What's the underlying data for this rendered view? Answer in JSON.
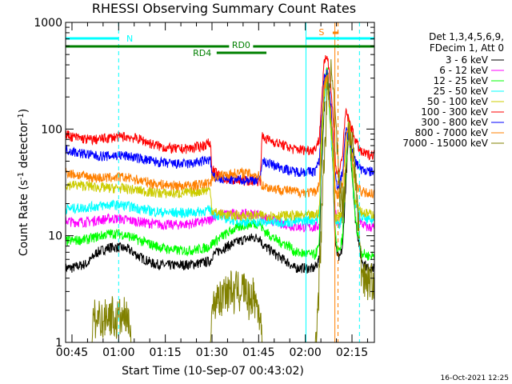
{
  "chart_data": {
    "type": "line",
    "title": "RHESSI Observing Summary Count Rates",
    "xlabel": "Start Time (10-Sep-07 00:43:02)",
    "ylabel_main": "Count Rate (s",
    "ylabel_sup1": "-1",
    "ylabel_mid": " detector",
    "ylabel_sup2": "-1",
    "ylabel_end": ")",
    "timestamp": "16-Oct-2021 12:25",
    "y_scale": "log",
    "ylim": [
      1,
      1000
    ],
    "xlim_minutes": [
      -2.05,
      97.2
    ],
    "x_ticks": [
      {
        "m": 0,
        "label": "00:45"
      },
      {
        "m": 15,
        "label": "01:00"
      },
      {
        "m": 30,
        "label": "01:15"
      },
      {
        "m": 45,
        "label": "01:30"
      },
      {
        "m": 60,
        "label": "01:45"
      },
      {
        "m": 75,
        "label": "02:00"
      },
      {
        "m": 90,
        "label": "02:15"
      }
    ],
    "y_ticks": [
      {
        "v": 1,
        "label": "1"
      },
      {
        "v": 10,
        "label": "10"
      },
      {
        "v": 100,
        "label": "100"
      },
      {
        "v": 1000,
        "label": "1000"
      }
    ],
    "legend_header": [
      "Det 1,3,4,5,6,9,",
      "FDecim 1, Att 0"
    ],
    "series": [
      {
        "name": "3 - 6 keV",
        "color": "#000000",
        "x": [
          -2,
          0,
          5,
          8,
          12,
          15,
          18,
          22,
          26,
          30,
          34,
          38,
          42,
          44.5,
          45,
          48,
          52,
          55,
          58,
          60.5,
          61,
          62,
          64,
          66,
          68,
          70,
          71,
          72,
          75,
          77,
          78,
          79.5,
          80,
          81,
          82,
          83,
          84,
          84.5,
          85,
          86,
          87,
          88,
          89,
          90,
          91,
          93,
          95
        ],
        "y": [
          5,
          5,
          5.5,
          7,
          7.8,
          7.8,
          7.5,
          6.3,
          5.5,
          5.3,
          5.3,
          5.4,
          5.6,
          5.8,
          6.5,
          7.5,
          8.5,
          9.2,
          9.6,
          9.6,
          8.5,
          7.9,
          7.3,
          6.5,
          6,
          5.5,
          5,
          5,
          5,
          4.9,
          5,
          6,
          30,
          150,
          330,
          130,
          35,
          10,
          7,
          6,
          8,
          30,
          100,
          40,
          15,
          6,
          5
        ]
      },
      {
        "name": "6 - 12 keV",
        "color": "#ff00ff",
        "x": [
          -2,
          0,
          5,
          8,
          12,
          15,
          18,
          22,
          26,
          30,
          34,
          38,
          42,
          44.5,
          45,
          48,
          52,
          55,
          58,
          60.5,
          61,
          62,
          64,
          66,
          68,
          70,
          71,
          72,
          75,
          77,
          78,
          79.5,
          80,
          81,
          82,
          83,
          84,
          84.5,
          85,
          86,
          87,
          88,
          89,
          90,
          91,
          93,
          95
        ],
        "y": [
          14,
          13.5,
          13.5,
          14,
          14.5,
          14.5,
          14,
          13.5,
          13,
          12.7,
          12.7,
          13,
          13.5,
          14,
          15,
          16,
          16,
          16,
          16,
          16,
          15,
          14.5,
          14,
          13.5,
          13,
          12.5,
          12.2,
          12.2,
          12,
          12,
          12,
          12.5,
          50,
          220,
          380,
          160,
          50,
          20,
          14,
          13,
          15,
          40,
          120,
          45,
          20,
          13,
          12
        ]
      },
      {
        "name": "12 - 25 keV",
        "color": "#00ff00",
        "x": [
          -2,
          0,
          5,
          8,
          12,
          15,
          18,
          22,
          26,
          30,
          34,
          38,
          42,
          44.5,
          45,
          48,
          52,
          55,
          58,
          60.5,
          61,
          62,
          64,
          66,
          68,
          70,
          71,
          72,
          75,
          77,
          78,
          79.5,
          80,
          81,
          82,
          83,
          84,
          84.5,
          85,
          86,
          87,
          88,
          89,
          90,
          91,
          93,
          95
        ],
        "y": [
          9,
          9,
          9.3,
          9.8,
          10.5,
          10.5,
          10,
          9,
          8.2,
          7.6,
          7.3,
          7.3,
          7.6,
          8,
          8.5,
          9.8,
          11.5,
          12.5,
          13,
          13,
          12,
          11,
          10,
          9,
          8.5,
          8,
          7.3,
          7,
          6.8,
          6.7,
          6.6,
          8,
          55,
          250,
          360,
          150,
          55,
          12,
          8,
          7,
          10,
          40,
          110,
          40,
          15,
          7,
          6.5
        ]
      },
      {
        "name": "25 - 50 keV",
        "color": "#00ffff",
        "x": [
          -2,
          0,
          5,
          8,
          12,
          15,
          18,
          22,
          26,
          30,
          34,
          38,
          42,
          44.5,
          45,
          48,
          52,
          55,
          58,
          60.5,
          61,
          62,
          64,
          66,
          68,
          70,
          71,
          72,
          75,
          77,
          78,
          79.5,
          80,
          81,
          82,
          83,
          84,
          84.5,
          85,
          86,
          87,
          88,
          89,
          90,
          91,
          93,
          95
        ],
        "y": [
          18,
          18,
          18.5,
          19,
          19.5,
          19.5,
          19,
          18,
          17,
          16.5,
          16.5,
          16.5,
          17,
          17.5,
          16.5,
          15,
          14,
          13.5,
          13.5,
          13.5,
          13.5,
          13.5,
          13.5,
          13.5,
          13.5,
          13.5,
          13.5,
          13.5,
          14,
          14,
          14,
          15,
          40,
          180,
          300,
          110,
          40,
          15,
          13,
          13,
          16,
          50,
          130,
          50,
          20,
          15,
          14
        ]
      },
      {
        "name": "50 - 100 keV",
        "color": "#cccc00",
        "x": [
          -2,
          0,
          5,
          8,
          12,
          15,
          18,
          22,
          26,
          30,
          34,
          38,
          42,
          44.5,
          45,
          48,
          52,
          55,
          58,
          60.5,
          61,
          62,
          64,
          66,
          68,
          70,
          71,
          72,
          75,
          77,
          78,
          79.5,
          80,
          81,
          82,
          83,
          84,
          84.5,
          85,
          86,
          87,
          88,
          89,
          90,
          91,
          93,
          95
        ],
        "y": [
          30,
          30,
          29.5,
          28.5,
          28,
          28,
          27.5,
          26.5,
          25.5,
          25,
          25,
          25.5,
          26.5,
          27,
          17,
          16,
          15.5,
          15.5,
          15.5,
          15.5,
          15.5,
          15.5,
          15.5,
          15.5,
          15.5,
          15.5,
          15.5,
          15.5,
          15.5,
          15.5,
          15.5,
          17,
          45,
          200,
          320,
          120,
          45,
          16,
          15,
          15,
          18,
          55,
          140,
          55,
          22,
          17,
          16
        ]
      },
      {
        "name": "100 - 300 keV",
        "color": "#ff0000",
        "x": [
          -2,
          0,
          5,
          8,
          12,
          15,
          18,
          22,
          26,
          30,
          34,
          38,
          42,
          44.5,
          45,
          48,
          52,
          55,
          58,
          60.5,
          61,
          62,
          64,
          66,
          68,
          70,
          71,
          72,
          75,
          77,
          78,
          79.5,
          80,
          81,
          82,
          83,
          84,
          84.5,
          85,
          86,
          87,
          88,
          89,
          90,
          91,
          93,
          95
        ],
        "y": [
          90,
          85,
          80,
          80,
          83,
          85,
          85,
          80,
          72,
          67,
          65,
          66,
          70,
          75,
          42,
          35,
          33,
          33,
          33,
          33,
          85,
          82,
          78,
          74,
          71,
          67,
          65,
          65,
          64,
          64,
          65,
          80,
          150,
          400,
          500,
          300,
          120,
          60,
          40,
          40,
          60,
          150,
          120,
          100,
          80,
          60,
          58
        ]
      },
      {
        "name": "300 - 800 keV",
        "color": "#0000ff",
        "x": [
          -2,
          0,
          5,
          8,
          12,
          15,
          18,
          22,
          26,
          30,
          34,
          38,
          42,
          44.5,
          45,
          48,
          52,
          55,
          58,
          60.5,
          61,
          62,
          64,
          66,
          68,
          70,
          71,
          72,
          75,
          77,
          78,
          79.5,
          80,
          81,
          82,
          83,
          84,
          84.5,
          85,
          86,
          87,
          88,
          89,
          90,
          91,
          93,
          95
        ],
        "y": [
          65,
          62,
          58,
          56,
          56,
          57,
          56,
          53,
          50,
          48,
          47,
          47.5,
          50,
          52,
          36,
          34,
          33.5,
          33.5,
          33.5,
          33.5,
          50,
          49,
          47,
          45,
          43,
          41,
          40,
          40,
          40,
          40,
          40,
          50,
          100,
          300,
          350,
          200,
          80,
          40,
          30,
          30,
          40,
          100,
          80,
          65,
          50,
          42,
          40
        ]
      },
      {
        "name": "800 - 7000 keV",
        "color": "#ff8000",
        "x": [
          -2,
          0,
          5,
          8,
          12,
          15,
          18,
          22,
          26,
          30,
          34,
          38,
          42,
          44.5,
          45,
          48,
          52,
          55,
          58,
          60.5,
          61,
          62,
          64,
          66,
          68,
          70,
          71,
          72,
          75,
          77,
          78,
          79.5,
          80,
          81,
          82,
          83,
          84,
          84.5,
          85,
          86,
          87,
          88,
          89,
          90,
          91,
          93,
          95
        ],
        "y": [
          40,
          38,
          36,
          35,
          35,
          35.5,
          35,
          33,
          31,
          30,
          29.5,
          29.5,
          30.5,
          31.5,
          35,
          37,
          38.5,
          39,
          38,
          36,
          30,
          29,
          28,
          27.5,
          27,
          26.5,
          26,
          26,
          25.5,
          25.5,
          25.5,
          30,
          80,
          250,
          320,
          160,
          70,
          30,
          25,
          25,
          30,
          80,
          110,
          60,
          30,
          26,
          25
        ]
      },
      {
        "name": "7000 - 15000 keV",
        "color": "#808000",
        "x": [
          -2,
          6.5,
          7,
          8,
          9,
          10,
          11,
          12,
          13,
          14,
          15,
          16,
          17,
          18,
          18.5,
          19,
          44.5,
          45,
          46,
          47,
          48,
          49,
          50,
          51,
          52,
          53,
          54,
          55,
          56,
          57,
          58,
          59,
          60,
          60.5,
          61,
          78,
          79,
          80,
          81,
          82,
          83,
          84,
          85,
          86,
          87,
          88,
          89,
          90,
          91,
          92,
          93,
          95
        ],
        "y": [
          1,
          1,
          2,
          1.5,
          2,
          1.5,
          2,
          1.8,
          2,
          1.5,
          2,
          1.6,
          2,
          1.5,
          2,
          1,
          1,
          2,
          2.5,
          3,
          2.5,
          3.5,
          3,
          3.5,
          2.8,
          3.5,
          3,
          3.5,
          3,
          2.5,
          3,
          2.5,
          2,
          2,
          1,
          1,
          2,
          10,
          50,
          200,
          400,
          200,
          80,
          30,
          20,
          40,
          100,
          80,
          40,
          15,
          5,
          4
        ]
      }
    ],
    "annotations": {
      "saa_label": "N",
      "flare_label": "S",
      "attenuator_label_top": "RD0",
      "attenuator_label_bottom": "RD4"
    }
  }
}
